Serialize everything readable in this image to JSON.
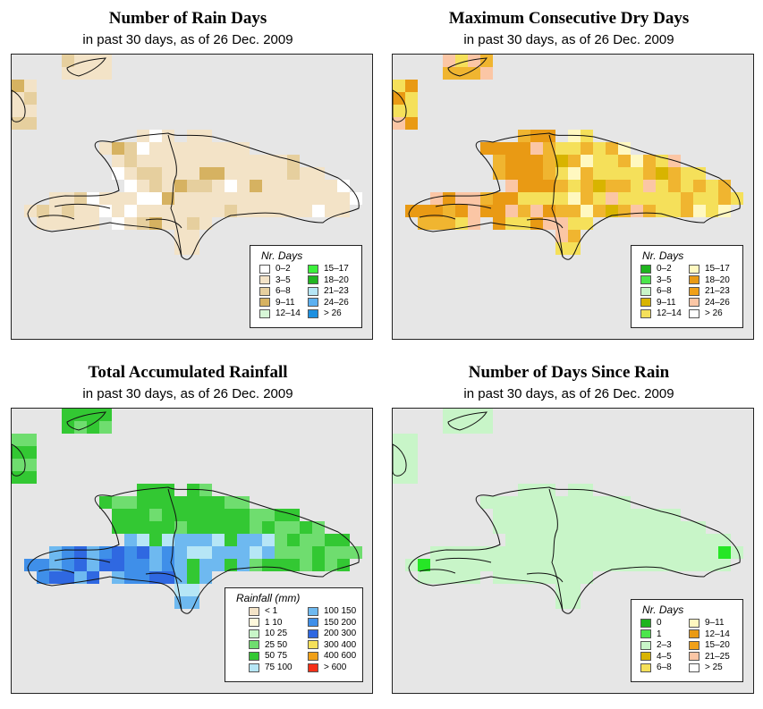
{
  "palettes": {
    "rain": {
      "white": "#ffffff",
      "tan1": "#f3e3c7",
      "tan2": "#e6cf9e",
      "tan3": "#d6b261"
    },
    "dry": {
      "d1": "#f5e05a",
      "d2": "#f0b530",
      "d3": "#e99a14",
      "d4": "#fbc6a5",
      "d5": "#fff8c0",
      "d6": "#d8b400"
    },
    "acc": {
      "dk": "#33c833",
      "lg": "#6fdd6f",
      "lb": "#6eb9f0",
      "vl": "#b6e6f6",
      "db": "#2f68e1",
      "md": "#3f8fe9"
    },
    "since": {
      "pale": "#c8f5c8",
      "grn": "#2ec82e",
      "brt": "#26e626"
    }
  },
  "panels": [
    {
      "title": "Number of Rain Days",
      "subtitle": "in past 30 days, as of  26 Dec. 2009",
      "legend": {
        "title": "Nr. Days",
        "items": [
          {
            "label": "0–2",
            "color": "#ffffff"
          },
          {
            "label": "3–5",
            "color": "#f3e3c7"
          },
          {
            "label": "6–8",
            "color": "#e6cf9e"
          },
          {
            "label": "9–11",
            "color": "#d6b261"
          },
          {
            "label": "12–14",
            "color": "#d7f7d7"
          },
          {
            "label": "15–17",
            "color": "#3cf03c"
          },
          {
            "label": "18–20",
            "color": "#21b521"
          },
          {
            "label": "21–23",
            "color": "#b6e6f6"
          },
          {
            "label": "24–26",
            "color": "#5cb0f0"
          },
          {
            "label": "> 26",
            "color": "#1e90e0"
          }
        ]
      }
    },
    {
      "title": "Maximum Consecutive Dry Days",
      "subtitle": "in past 30 days, as of  26 Dec. 2009",
      "legend": {
        "title": "Nr. Days",
        "items": [
          {
            "label": "0–2",
            "color": "#1eb41e"
          },
          {
            "label": "3–5",
            "color": "#4be64b"
          },
          {
            "label": "6–8",
            "color": "#c8f5c8"
          },
          {
            "label": "9–11",
            "color": "#d8b400"
          },
          {
            "label": "12–14",
            "color": "#f5e05a"
          },
          {
            "label": "15–17",
            "color": "#fff8c0"
          },
          {
            "label": "18–20",
            "color": "#e99a14"
          },
          {
            "label": "21–23",
            "color": "#f0a018"
          },
          {
            "label": "24–26",
            "color": "#fbc6a5"
          },
          {
            "label": "> 26",
            "color": "#ffffff"
          }
        ]
      }
    },
    {
      "title": "Total Accumulated Rainfall",
      "subtitle": "in past 30 days, as of  26 Dec. 2009",
      "legend": {
        "title": "Rainfall (mm)",
        "items": [
          {
            "label": "< 1",
            "color": "#f3e3c7"
          },
          {
            "label": "1    10",
            "color": "#fff8dc"
          },
          {
            "label": "10    25",
            "color": "#c8f5c8"
          },
          {
            "label": "25    50",
            "color": "#6fdd6f"
          },
          {
            "label": "50    75",
            "color": "#33c833"
          },
          {
            "label": "75  100",
            "color": "#b6e6f6"
          },
          {
            "label": "100  150",
            "color": "#6eb9f0"
          },
          {
            "label": "150  200",
            "color": "#3f8fe9"
          },
          {
            "label": "200  300",
            "color": "#2f68e1"
          },
          {
            "label": "300  400",
            "color": "#f5e05a"
          },
          {
            "label": "400  600",
            "color": "#f0a018"
          },
          {
            "label": "> 600",
            "color": "#f53018"
          }
        ]
      }
    },
    {
      "title": "Number of Days Since Rain",
      "subtitle": "in past 30 days, as of  26 Dec. 2009",
      "legend": {
        "title": "Nr. Days",
        "items": [
          {
            "label": "0",
            "color": "#1eb41e"
          },
          {
            "label": "1",
            "color": "#4be64b"
          },
          {
            "label": "2–3",
            "color": "#c8f5c8"
          },
          {
            "label": "4–5",
            "color": "#d8b400"
          },
          {
            "label": "6–8",
            "color": "#f5e05a"
          },
          {
            "label": "9–11",
            "color": "#fff8c0"
          },
          {
            "label": "12–14",
            "color": "#e99a14"
          },
          {
            "label": "15–20",
            "color": "#f0a018"
          },
          {
            "label": "21–25",
            "color": "#fbc6a5"
          },
          {
            "label": "> 25",
            "color": "#ffffff"
          }
        ]
      }
    }
  ]
}
